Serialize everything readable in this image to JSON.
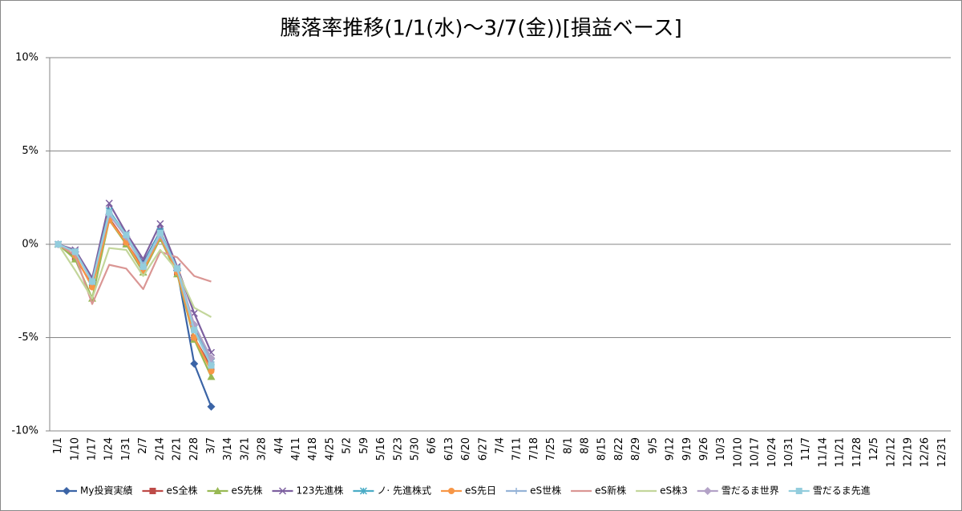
{
  "chart_data": {
    "type": "line",
    "title": "騰落率推移(1/1(水)～3/7(金))[損益ベース]",
    "categories": [
      "1/1",
      "1/10",
      "1/17",
      "1/24",
      "1/31",
      "2/7",
      "2/14",
      "2/21",
      "2/28",
      "3/7",
      "3/14",
      "3/21",
      "3/28",
      "4/4",
      "4/11",
      "4/18",
      "4/25",
      "5/2",
      "5/9",
      "5/16",
      "5/23",
      "5/30",
      "6/6",
      "6/13",
      "6/20",
      "6/27",
      "7/4",
      "7/11",
      "7/18",
      "7/25",
      "8/1",
      "8/8",
      "8/15",
      "8/22",
      "8/29",
      "9/5",
      "9/12",
      "9/19",
      "9/26",
      "10/3",
      "10/10",
      "10/17",
      "10/24",
      "10/31",
      "11/7",
      "11/14",
      "11/21",
      "11/28",
      "12/5",
      "12/12",
      "12/19",
      "12/26",
      "12/31"
    ],
    "ylim": [
      -10,
      10
    ],
    "yticks": [
      {
        "value": -10,
        "label": "-10%"
      },
      {
        "value": -5,
        "label": "-5%"
      },
      {
        "value": 0,
        "label": "0%"
      },
      {
        "value": 5,
        "label": "5%"
      },
      {
        "value": 10,
        "label": "10%"
      }
    ],
    "grid": true,
    "legend": "bottom",
    "series": [
      {
        "name": "My投資実績",
        "color": "#3b64a6",
        "marker": "diamond",
        "values": [
          0,
          -0.4,
          -2.0,
          1.6,
          0.4,
          -1.0,
          0.7,
          -1.4,
          -6.4,
          -8.7,
          null,
          null,
          null,
          null,
          null,
          null,
          null,
          null,
          null,
          null,
          null,
          null,
          null,
          null,
          null,
          null,
          null,
          null,
          null,
          null,
          null,
          null,
          null,
          null,
          null,
          null,
          null,
          null,
          null,
          null,
          null,
          null,
          null,
          null,
          null,
          null,
          null,
          null,
          null,
          null,
          null,
          null,
          null
        ]
      },
      {
        "name": "eS全株",
        "color": "#be4b48",
        "marker": "square",
        "values": [
          0,
          -0.7,
          -2.2,
          1.4,
          0.1,
          -1.3,
          0.5,
          -1.5,
          -5.0,
          -6.6,
          null,
          null,
          null,
          null,
          null,
          null,
          null,
          null,
          null,
          null,
          null,
          null,
          null,
          null,
          null,
          null,
          null,
          null,
          null,
          null,
          null,
          null,
          null,
          null,
          null,
          null,
          null,
          null,
          null,
          null,
          null,
          null,
          null,
          null,
          null,
          null,
          null,
          null,
          null,
          null,
          null,
          null,
          null
        ]
      },
      {
        "name": "eS先株",
        "color": "#98b954",
        "marker": "triangle",
        "values": [
          0,
          -0.8,
          -2.9,
          1.3,
          0.0,
          -1.5,
          0.3,
          -1.6,
          -5.1,
          -7.1,
          null,
          null,
          null,
          null,
          null,
          null,
          null,
          null,
          null,
          null,
          null,
          null,
          null,
          null,
          null,
          null,
          null,
          null,
          null,
          null,
          null,
          null,
          null,
          null,
          null,
          null,
          null,
          null,
          null,
          null,
          null,
          null,
          null,
          null,
          null,
          null,
          null,
          null,
          null,
          null,
          null,
          null,
          null
        ]
      },
      {
        "name": "123先進株",
        "color": "#7d60a0",
        "marker": "x",
        "values": [
          0,
          -0.3,
          -1.8,
          2.2,
          0.6,
          -0.8,
          1.1,
          -1.2,
          -3.7,
          -5.8,
          null,
          null,
          null,
          null,
          null,
          null,
          null,
          null,
          null,
          null,
          null,
          null,
          null,
          null,
          null,
          null,
          null,
          null,
          null,
          null,
          null,
          null,
          null,
          null,
          null,
          null,
          null,
          null,
          null,
          null,
          null,
          null,
          null,
          null,
          null,
          null,
          null,
          null,
          null,
          null,
          null,
          null,
          null
        ]
      },
      {
        "name": "ノ· 先進株式",
        "color": "#4bacc6",
        "marker": "star",
        "values": [
          0,
          -0.4,
          -2.0,
          1.8,
          0.5,
          -1.1,
          0.7,
          -1.3,
          -4.5,
          -6.3,
          null,
          null,
          null,
          null,
          null,
          null,
          null,
          null,
          null,
          null,
          null,
          null,
          null,
          null,
          null,
          null,
          null,
          null,
          null,
          null,
          null,
          null,
          null,
          null,
          null,
          null,
          null,
          null,
          null,
          null,
          null,
          null,
          null,
          null,
          null,
          null,
          null,
          null,
          null,
          null,
          null,
          null,
          null
        ]
      },
      {
        "name": "eS先日",
        "color": "#f79646",
        "marker": "circle",
        "values": [
          0,
          -0.6,
          -2.3,
          1.3,
          0.1,
          -1.4,
          0.4,
          -1.5,
          -5.0,
          -6.8,
          null,
          null,
          null,
          null,
          null,
          null,
          null,
          null,
          null,
          null,
          null,
          null,
          null,
          null,
          null,
          null,
          null,
          null,
          null,
          null,
          null,
          null,
          null,
          null,
          null,
          null,
          null,
          null,
          null,
          null,
          null,
          null,
          null,
          null,
          null,
          null,
          null,
          null,
          null,
          null,
          null,
          null,
          null
        ]
      },
      {
        "name": "eS世株",
        "color": "#95b3d7",
        "marker": "plus",
        "values": [
          0,
          -0.4,
          -2.0,
          1.7,
          0.5,
          -1.1,
          0.6,
          -1.3,
          -4.6,
          -6.3,
          null,
          null,
          null,
          null,
          null,
          null,
          null,
          null,
          null,
          null,
          null,
          null,
          null,
          null,
          null,
          null,
          null,
          null,
          null,
          null,
          null,
          null,
          null,
          null,
          null,
          null,
          null,
          null,
          null,
          null,
          null,
          null,
          null,
          null,
          null,
          null,
          null,
          null,
          null,
          null,
          null,
          null,
          null
        ]
      },
      {
        "name": "eS新株",
        "color": "#da9694",
        "marker": "none",
        "values": [
          0,
          -0.6,
          -3.2,
          -1.1,
          -1.3,
          -2.4,
          -0.4,
          -0.7,
          -1.7,
          -2.0,
          null,
          null,
          null,
          null,
          null,
          null,
          null,
          null,
          null,
          null,
          null,
          null,
          null,
          null,
          null,
          null,
          null,
          null,
          null,
          null,
          null,
          null,
          null,
          null,
          null,
          null,
          null,
          null,
          null,
          null,
          null,
          null,
          null,
          null,
          null,
          null,
          null,
          null,
          null,
          null,
          null,
          null,
          null
        ]
      },
      {
        "name": "eS株3",
        "color": "#c3d69b",
        "marker": "none",
        "values": [
          0,
          -1.4,
          -2.9,
          -0.2,
          -0.3,
          -1.7,
          -0.3,
          -1.4,
          -3.4,
          -3.9,
          null,
          null,
          null,
          null,
          null,
          null,
          null,
          null,
          null,
          null,
          null,
          null,
          null,
          null,
          null,
          null,
          null,
          null,
          null,
          null,
          null,
          null,
          null,
          null,
          null,
          null,
          null,
          null,
          null,
          null,
          null,
          null,
          null,
          null,
          null,
          null,
          null,
          null,
          null,
          null,
          null,
          null,
          null
        ]
      },
      {
        "name": "雪だるま世界",
        "color": "#b3a2c7",
        "marker": "diamond",
        "values": [
          0,
          -0.4,
          -2.0,
          1.6,
          0.4,
          -1.2,
          0.5,
          -1.3,
          -4.3,
          -6.1,
          null,
          null,
          null,
          null,
          null,
          null,
          null,
          null,
          null,
          null,
          null,
          null,
          null,
          null,
          null,
          null,
          null,
          null,
          null,
          null,
          null,
          null,
          null,
          null,
          null,
          null,
          null,
          null,
          null,
          null,
          null,
          null,
          null,
          null,
          null,
          null,
          null,
          null,
          null,
          null,
          null,
          null,
          null
        ]
      },
      {
        "name": "雪だるま先進",
        "color": "#93cddd",
        "marker": "square",
        "values": [
          0,
          -0.4,
          -2.0,
          1.7,
          0.5,
          -1.2,
          0.6,
          -1.3,
          -4.6,
          -6.5,
          null,
          null,
          null,
          null,
          null,
          null,
          null,
          null,
          null,
          null,
          null,
          null,
          null,
          null,
          null,
          null,
          null,
          null,
          null,
          null,
          null,
          null,
          null,
          null,
          null,
          null,
          null,
          null,
          null,
          null,
          null,
          null,
          null,
          null,
          null,
          null,
          null,
          null,
          null,
          null,
          null,
          null,
          null
        ]
      }
    ]
  }
}
